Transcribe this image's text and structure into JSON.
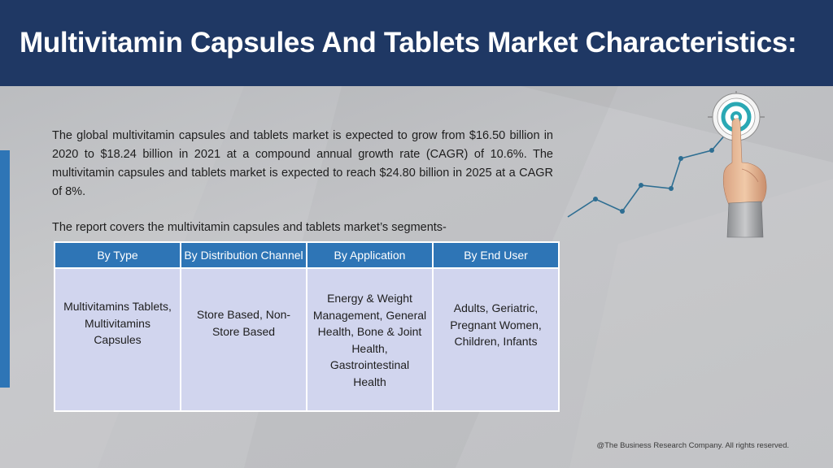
{
  "header": {
    "title": "Multivitamin Capsules And Tablets Market Characteristics:"
  },
  "intro": {
    "paragraph": "The global multivitamin capsules and tablets market is expected to grow from $16.50 billion in 2020 to $18.24 billion in 2021 at a compound annual growth rate (CAGR) of 10.6%. The multivitamin capsules and tablets market is expected to reach $24.80 billion in 2025 at a CAGR of 8%.",
    "segments_lead": "The report covers the multivitamin capsules and tablets market’s segments-"
  },
  "segments_table": {
    "headers": [
      "By Type",
      "By Distribution Channel",
      "By Application",
      "By End User"
    ],
    "cells": [
      "Multivitamins Tablets, Multivitamins Capsules",
      "Store Based, Non-Store Based",
      "Energy & Weight Management, General Health, Bone & Joint Health, Gastrointestinal Health",
      "Adults, Geriatric, Pregnant Women, Children, Infants"
    ]
  },
  "illustration": {
    "icon": "target-growth-chart-icon"
  },
  "footer": {
    "copyright": "@The Business Research Company. All rights reserved."
  },
  "colors": {
    "header_bg": "#1f3864",
    "accent_blue": "#2e75b6",
    "table_cell_bg": "#d1d5ee",
    "slide_bg": "#bcbdc0"
  }
}
